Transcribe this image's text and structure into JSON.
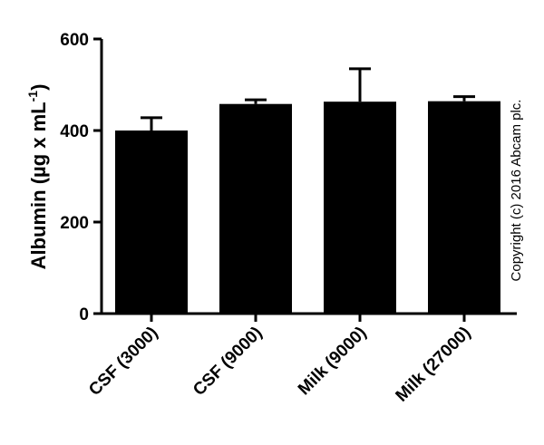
{
  "chart_data": {
    "type": "bar",
    "categories": [
      "CSF (3000)",
      "CSF (9000)",
      "Milk (9000)",
      "Milk (27000)"
    ],
    "values": [
      400,
      458,
      463,
      464
    ],
    "error_upper": [
      428,
      467,
      535,
      474
    ],
    "ylabel_main": "Albumin (",
    "ylabel_mu": "µ",
    "ylabel_rest": "g x mL",
    "ylabel_sup": "-1",
    "ylabel_close": ")",
    "yticks": [
      0,
      200,
      400,
      600
    ],
    "ylim": [
      0,
      600
    ],
    "grid": false,
    "legend": "none",
    "annotation": "Copyright (c) 2016 Abcam plc.",
    "bar_color": "#000000"
  }
}
